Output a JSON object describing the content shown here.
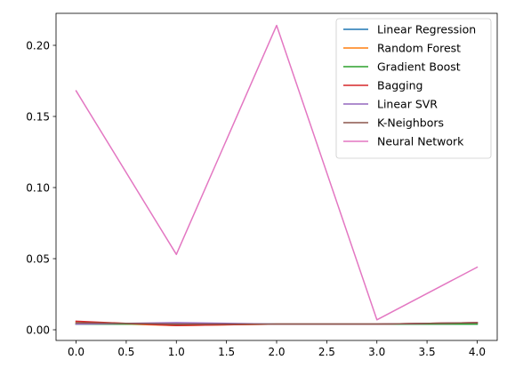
{
  "chart_data": {
    "type": "line",
    "title": "",
    "xlabel": "",
    "ylabel": "",
    "x": [
      0,
      1,
      2,
      3,
      4
    ],
    "xlim": [
      -0.2,
      4.2
    ],
    "ylim": [
      -0.0075,
      0.2225
    ],
    "xticks": [
      0.0,
      0.5,
      1.0,
      1.5,
      2.0,
      2.5,
      3.0,
      3.5,
      4.0
    ],
    "xtick_labels": [
      "0.0",
      "0.5",
      "1.0",
      "1.5",
      "2.0",
      "2.5",
      "3.0",
      "3.5",
      "4.0"
    ],
    "yticks": [
      0.0,
      0.05,
      0.1,
      0.15,
      0.2
    ],
    "ytick_labels": [
      "0.00",
      "0.05",
      "0.10",
      "0.15",
      "0.20"
    ],
    "grid": false,
    "legend_position": "top-right",
    "series": [
      {
        "name": "Linear Regression",
        "color": "#1f77b4",
        "values": [
          0.004,
          0.004,
          0.004,
          0.004,
          0.004
        ]
      },
      {
        "name": "Random Forest",
        "color": "#ff7f0e",
        "values": [
          0.005,
          0.003,
          0.004,
          0.004,
          0.005
        ]
      },
      {
        "name": "Gradient Boost",
        "color": "#2ca02c",
        "values": [
          0.004,
          0.004,
          0.004,
          0.004,
          0.004
        ]
      },
      {
        "name": "Bagging",
        "color": "#d62728",
        "values": [
          0.006,
          0.003,
          0.004,
          0.004,
          0.005
        ]
      },
      {
        "name": "Linear SVR",
        "color": "#9467bd",
        "values": [
          0.004,
          0.005,
          0.004,
          0.004,
          0.005
        ]
      },
      {
        "name": "K-Neighbors",
        "color": "#8c564b",
        "values": [
          0.005,
          0.004,
          0.004,
          0.004,
          0.005
        ]
      },
      {
        "name": "Neural Network",
        "color": "#e377c2",
        "values": [
          0.168,
          0.053,
          0.214,
          0.007,
          0.044
        ]
      }
    ]
  }
}
